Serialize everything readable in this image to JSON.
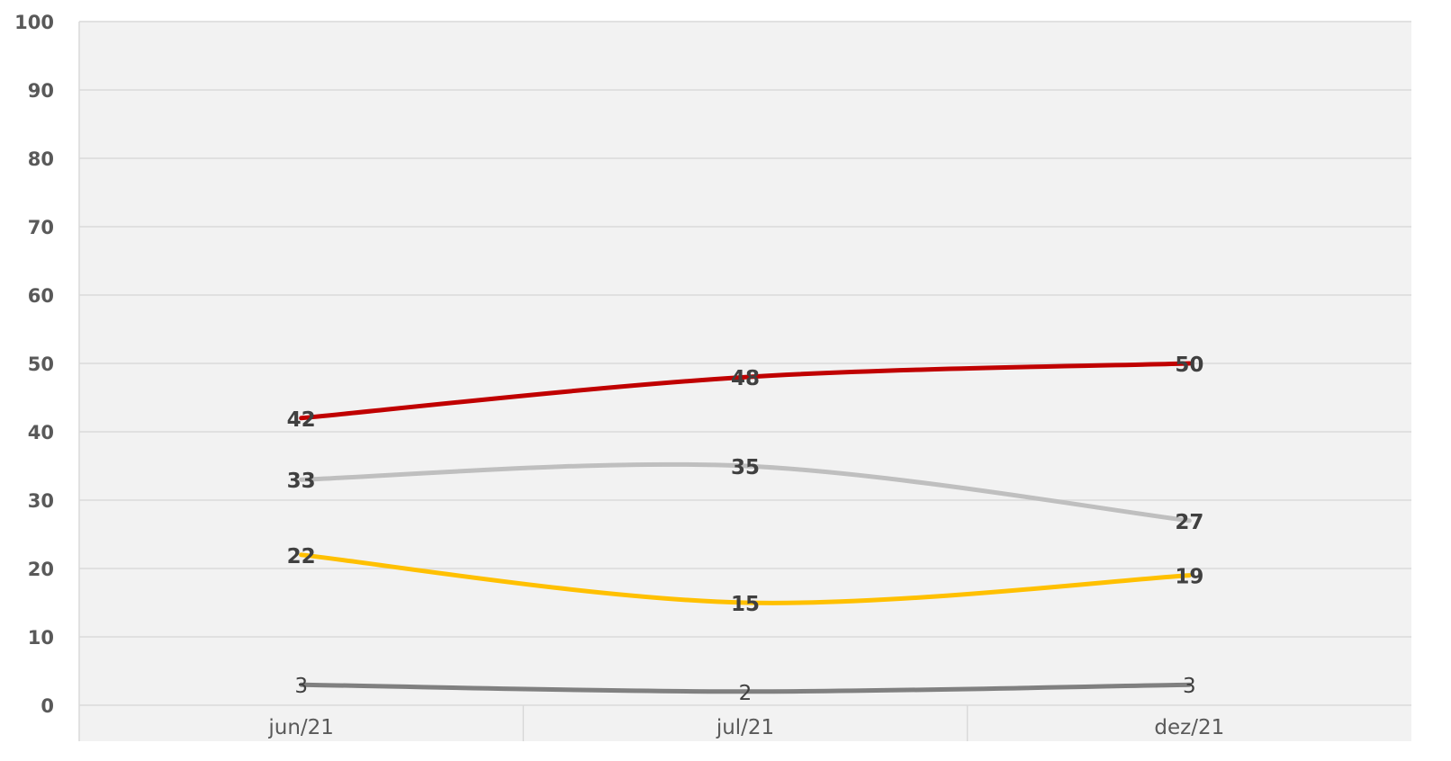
{
  "chart_data": {
    "type": "line",
    "title": "",
    "xlabel": "",
    "ylabel": "",
    "categories": [
      "jun/21",
      "jul/21",
      "dez/21"
    ],
    "ylim": [
      0,
      100
    ],
    "yticks": [
      "0",
      "10",
      "20",
      "30",
      "40",
      "50",
      "60",
      "70",
      "80",
      "90",
      "100"
    ],
    "grid": true,
    "legend": "none",
    "smooth": true,
    "series": [
      {
        "color": "#C00000",
        "values": [
          42,
          48,
          50
        ],
        "labels": [
          "42",
          "48",
          "50"
        ],
        "label_bold": true
      },
      {
        "color": "#BFBFBF",
        "values": [
          33,
          35,
          27
        ],
        "labels": [
          "33",
          "35",
          "27"
        ],
        "label_bold": true
      },
      {
        "color": "#FFC000",
        "values": [
          22,
          15,
          19
        ],
        "labels": [
          "22",
          "15",
          "19"
        ],
        "label_bold": true
      },
      {
        "color": "#808080",
        "values": [
          3,
          2,
          3
        ],
        "labels": [
          "3",
          "2",
          "3"
        ],
        "label_bold": false
      }
    ],
    "plot_background": "#F2F2F2",
    "grid_color": "#D9D9D9"
  }
}
